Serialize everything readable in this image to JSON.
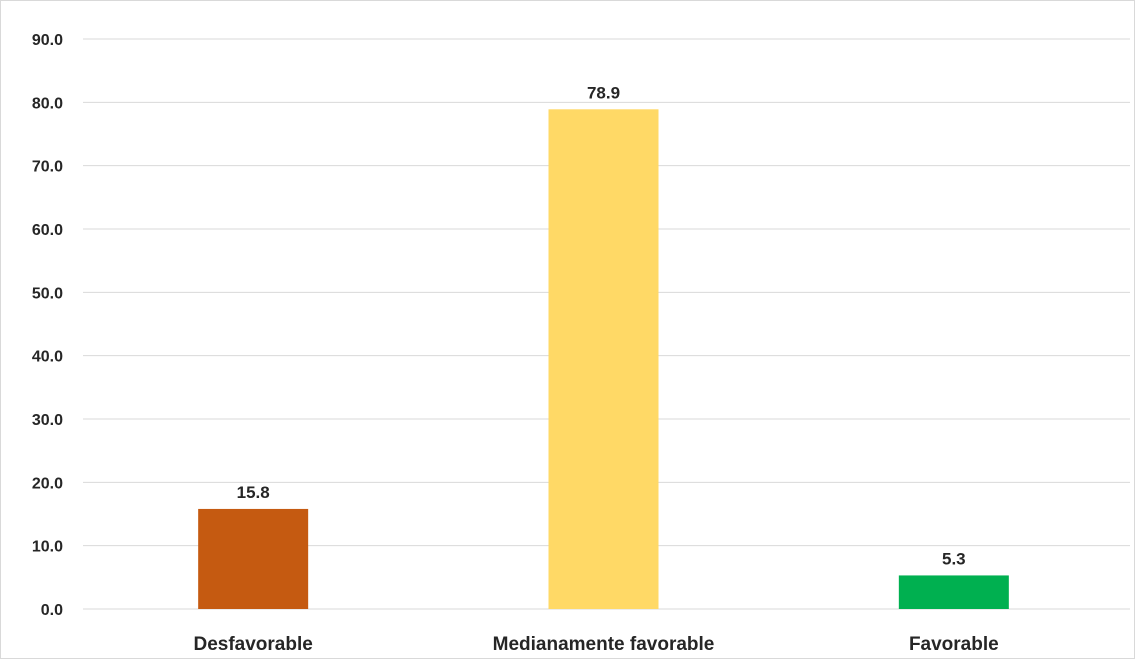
{
  "chart_data": {
    "type": "bar",
    "title": "",
    "xlabel": "",
    "ylabel": "",
    "categories": [
      "Desfavorable",
      "Medianamente favorable",
      "Favorable"
    ],
    "values": [
      15.8,
      78.9,
      5.3
    ],
    "data_labels": [
      "15.8",
      "78.9",
      "5.3"
    ],
    "colors": [
      "#c55a11",
      "#ffd966",
      "#00b050"
    ],
    "ylim": [
      0,
      90
    ],
    "yticks": [
      0,
      10,
      20,
      30,
      40,
      50,
      60,
      70,
      80,
      90
    ],
    "ytick_labels": [
      "0.0",
      "10.0",
      "20.0",
      "30.0",
      "40.0",
      "50.0",
      "60.0",
      "70.0",
      "80.0",
      "90.0"
    ],
    "grid": true,
    "legend": "none"
  }
}
